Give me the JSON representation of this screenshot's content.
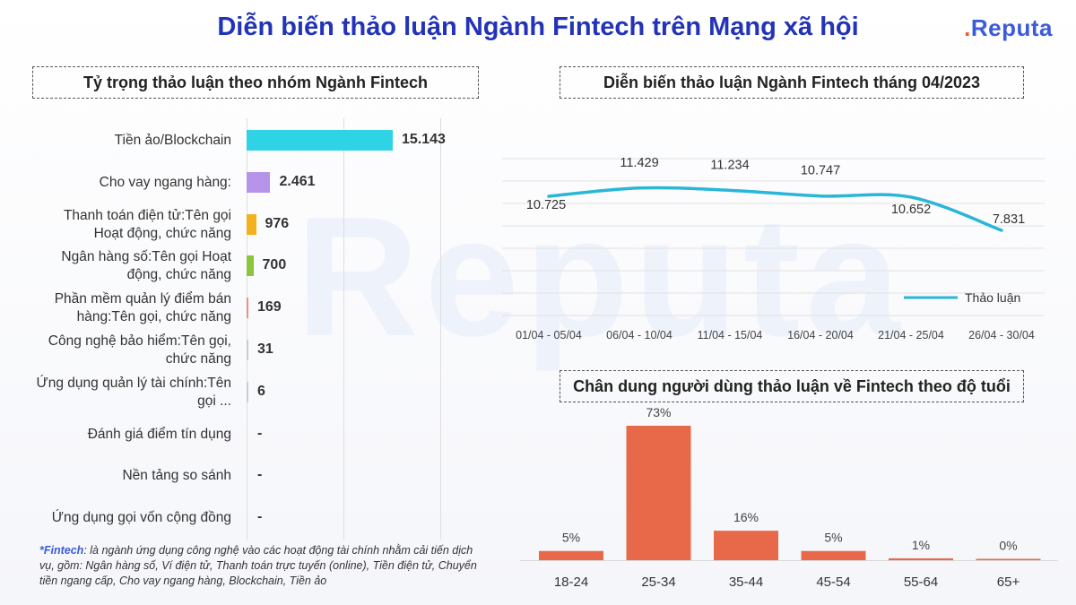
{
  "title": "Diễn biến thảo luận Ngành Fintech trên Mạng xã hội",
  "logo": {
    "text": "Reputa",
    "dot": "."
  },
  "watermark": "Reputa",
  "left_panel": {
    "heading": "Tỷ trọng thảo luận theo nhóm Ngành Fintech"
  },
  "line_panel": {
    "heading": "Diễn biến thảo luận Ngành Fintech tháng 04/2023"
  },
  "age_panel": {
    "heading": "Chân dung người dùng thảo luận về Fintech theo độ tuổi"
  },
  "footnote": {
    "term": "*Fintech",
    "text": ": là ngành ứng dụng công nghệ vào các hoạt động tài chính nhằm cải tiến dịch vụ, gồm: Ngân hàng số, Ví điện tử, Thanh toán trực tuyến (online), Tiền điện tử, Chuyển tiền ngang cấp, Cho vay ngang hàng, Blockchain, Tiền ảo"
  },
  "colors": {
    "title": "#2233b8",
    "line": "#29b6d8",
    "age_bar": "#e8694a"
  },
  "chart_data": [
    {
      "type": "bar",
      "orientation": "horizontal",
      "title": "Tỷ trọng thảo luận theo nhóm Ngành Fintech",
      "categories": [
        "Tiền ảo/Blockchain",
        "Cho vay ngang hàng:",
        "Thanh toán điện tử:Tên gọi Hoạt động, chức năng",
        "Ngân hàng số:Tên gọi Hoạt động, chức năng",
        "Phần mềm quản lý điểm bán hàng:Tên gọi, chức năng",
        "Công nghệ bảo hiểm:Tên gọi, chức năng",
        "Ứng dụng quản lý tài chính:Tên gọi ...",
        "Đánh giá điểm tín dụng",
        "Nền tảng so sánh",
        "Ứng dụng gọi vốn cộng đồng"
      ],
      "values": [
        15143,
        2461,
        976,
        700,
        169,
        31,
        6,
        0,
        0,
        0
      ],
      "value_labels": [
        "15.143",
        "2.461",
        "976",
        "700",
        "169",
        "31",
        "6",
        "-",
        "-",
        "-"
      ],
      "colors": [
        "#2fd3e6",
        "#b694ec",
        "#f3b21c",
        "#8cc63e",
        "#f08c8c",
        "#cccccc",
        "#cccccc",
        "#cccccc",
        "#cccccc",
        "#cccccc"
      ],
      "xlim": [
        0,
        20000
      ]
    },
    {
      "type": "line",
      "title": "Diễn biến thảo luận Ngành Fintech tháng 04/2023",
      "categories": [
        "01/04 - 05/04",
        "06/04 - 10/04",
        "11/04 - 15/04",
        "16/04 - 20/04",
        "21/04 - 25/04",
        "26/04 - 30/04"
      ],
      "series": [
        {
          "name": "Thảo luận",
          "values": [
            10725,
            11429,
            11234,
            10747,
            10652,
            7831
          ],
          "labels": [
            "10.725",
            "11.429",
            "11.234",
            "10.747",
            "10.652",
            "7.831"
          ]
        }
      ],
      "legend": "right",
      "ylim": [
        0,
        14000
      ]
    },
    {
      "type": "bar",
      "title": "Chân dung người dùng thảo luận về Fintech theo độ tuổi",
      "categories": [
        "18-24",
        "25-34",
        "35-44",
        "45-54",
        "55-64",
        "65+"
      ],
      "values": [
        5,
        73,
        16,
        5,
        1,
        0
      ],
      "value_labels": [
        "5%",
        "73%",
        "16%",
        "5%",
        "1%",
        "0%"
      ],
      "ylim": [
        0,
        73
      ]
    }
  ]
}
